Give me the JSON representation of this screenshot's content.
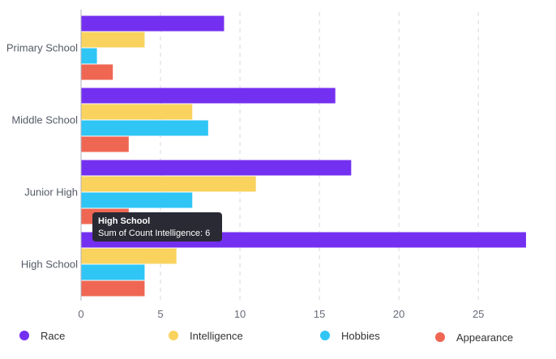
{
  "chart_data": {
    "type": "bar",
    "orientation": "horizontal",
    "categories": [
      "Primary School",
      "Middle School",
      "Junior High",
      "High School"
    ],
    "series": [
      {
        "name": "Race",
        "color": "#7430f0",
        "values": [
          9,
          16,
          17,
          28
        ]
      },
      {
        "name": "Intelligence",
        "color": "#f9d35e",
        "values": [
          4,
          7,
          11,
          6
        ]
      },
      {
        "name": "Hobbies",
        "color": "#2fc6f6",
        "values": [
          1,
          8,
          7,
          4
        ]
      },
      {
        "name": "Appearance",
        "color": "#ef6753",
        "values": [
          2,
          3,
          3,
          4
        ]
      }
    ],
    "xticks": [
      "0",
      "5",
      "10",
      "15",
      "20",
      "25"
    ],
    "xlim": [
      0,
      28
    ],
    "grid": "vertical dashed",
    "legend_position": "bottom",
    "title": "",
    "xlabel": "",
    "ylabel": ""
  },
  "tooltip": {
    "title": "High School",
    "body": "Sum of Count Intelligence: 6"
  }
}
